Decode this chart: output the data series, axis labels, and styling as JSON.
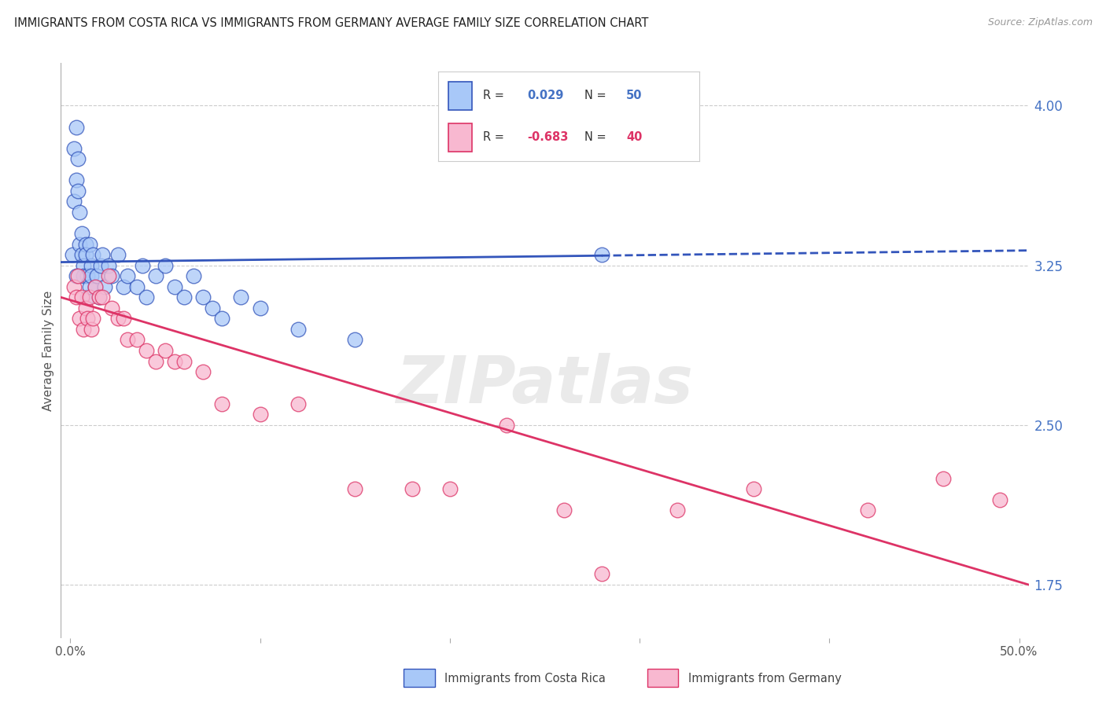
{
  "title": "IMMIGRANTS FROM COSTA RICA VS IMMIGRANTS FROM GERMANY AVERAGE FAMILY SIZE CORRELATION CHART",
  "source": "Source: ZipAtlas.com",
  "ylabel": "Average Family Size",
  "legend_cr": "Immigrants from Costa Rica",
  "legend_de": "Immigrants from Germany",
  "r_cr": 0.029,
  "n_cr": 50,
  "r_de": -0.683,
  "n_de": 40,
  "ylim": [
    1.5,
    4.2
  ],
  "xlim": [
    -0.005,
    0.505
  ],
  "yticks": [
    1.75,
    2.5,
    3.25,
    4.0
  ],
  "color_cr": "#a8c8f8",
  "color_de": "#f8b8d0",
  "line_cr": "#3355bb",
  "line_de": "#dd3366",
  "watermark": "ZIPatlas",
  "background": "#ffffff",
  "scatter_cr_x": [
    0.001,
    0.002,
    0.002,
    0.003,
    0.003,
    0.004,
    0.004,
    0.005,
    0.005,
    0.006,
    0.006,
    0.007,
    0.007,
    0.008,
    0.008,
    0.009,
    0.009,
    0.01,
    0.01,
    0.011,
    0.011,
    0.012,
    0.013,
    0.014,
    0.015,
    0.016,
    0.017,
    0.018,
    0.02,
    0.022,
    0.025,
    0.028,
    0.03,
    0.035,
    0.038,
    0.04,
    0.045,
    0.05,
    0.055,
    0.06,
    0.065,
    0.07,
    0.075,
    0.08,
    0.09,
    0.1,
    0.12,
    0.15,
    0.28,
    0.003
  ],
  "scatter_cr_y": [
    3.3,
    3.55,
    3.8,
    3.65,
    3.9,
    3.75,
    3.6,
    3.35,
    3.5,
    3.4,
    3.3,
    3.25,
    3.2,
    3.35,
    3.3,
    3.2,
    3.1,
    3.35,
    3.15,
    3.25,
    3.2,
    3.3,
    3.15,
    3.2,
    3.1,
    3.25,
    3.3,
    3.15,
    3.25,
    3.2,
    3.3,
    3.15,
    3.2,
    3.15,
    3.25,
    3.1,
    3.2,
    3.25,
    3.15,
    3.1,
    3.2,
    3.1,
    3.05,
    3.0,
    3.1,
    3.05,
    2.95,
    2.9,
    3.3,
    3.2
  ],
  "scatter_de_x": [
    0.002,
    0.003,
    0.004,
    0.005,
    0.006,
    0.007,
    0.008,
    0.009,
    0.01,
    0.011,
    0.012,
    0.013,
    0.015,
    0.017,
    0.02,
    0.022,
    0.025,
    0.028,
    0.03,
    0.035,
    0.04,
    0.045,
    0.05,
    0.055,
    0.06,
    0.07,
    0.08,
    0.1,
    0.12,
    0.15,
    0.18,
    0.2,
    0.23,
    0.26,
    0.28,
    0.32,
    0.36,
    0.42,
    0.46,
    0.49
  ],
  "scatter_de_y": [
    3.15,
    3.1,
    3.2,
    3.0,
    3.1,
    2.95,
    3.05,
    3.0,
    3.1,
    2.95,
    3.0,
    3.15,
    3.1,
    3.1,
    3.2,
    3.05,
    3.0,
    3.0,
    2.9,
    2.9,
    2.85,
    2.8,
    2.85,
    2.8,
    2.8,
    2.75,
    2.6,
    2.55,
    2.6,
    2.2,
    2.2,
    2.2,
    2.5,
    2.1,
    1.8,
    2.1,
    2.2,
    2.1,
    2.25,
    2.15
  ]
}
